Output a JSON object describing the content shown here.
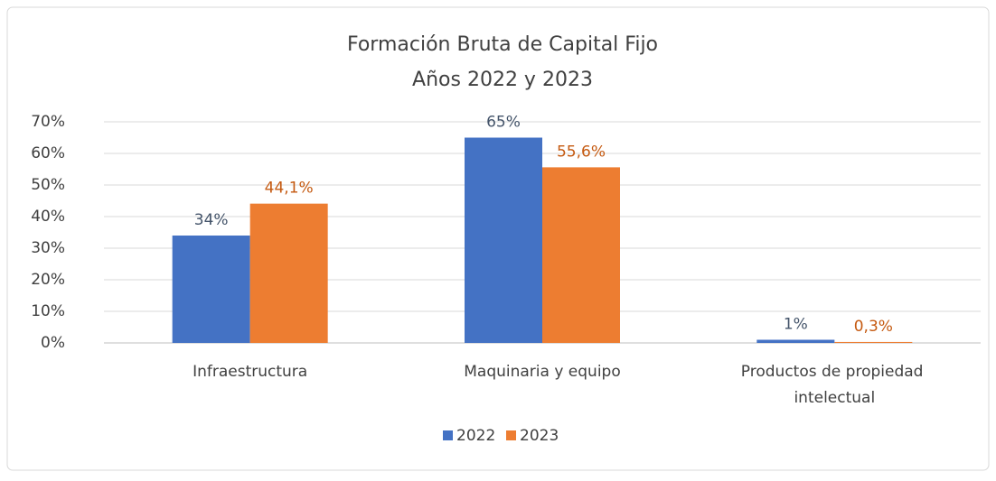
{
  "chart_data": {
    "type": "bar",
    "title": "Formación Bruta de Capital Fijo",
    "subtitle": "Años 2022 y 2023",
    "categories": [
      "Infraestructura",
      "Maquinaria y equipo",
      "Productos de propiedad intelectual"
    ],
    "series": [
      {
        "name": "2022",
        "color": "#4472c4",
        "values": [
          34,
          65,
          1
        ],
        "value_labels": [
          "34%",
          "65%",
          "1%"
        ]
      },
      {
        "name": "2023",
        "color": "#ed7d31",
        "values": [
          44.1,
          55.6,
          0.3
        ],
        "value_labels": [
          "44,1%",
          "55,6%",
          "0,3%"
        ]
      }
    ],
    "ylim": [
      0,
      70
    ],
    "yticks": [
      {
        "value": 0,
        "label": "0%"
      },
      {
        "value": 10,
        "label": "10%"
      },
      {
        "value": 20,
        "label": "20%"
      },
      {
        "value": 30,
        "label": "30%"
      },
      {
        "value": 40,
        "label": "40%"
      },
      {
        "value": 50,
        "label": "50%"
      },
      {
        "value": 60,
        "label": "60%"
      },
      {
        "value": 70,
        "label": "70%"
      }
    ],
    "grid": true,
    "legend": "bottom"
  }
}
